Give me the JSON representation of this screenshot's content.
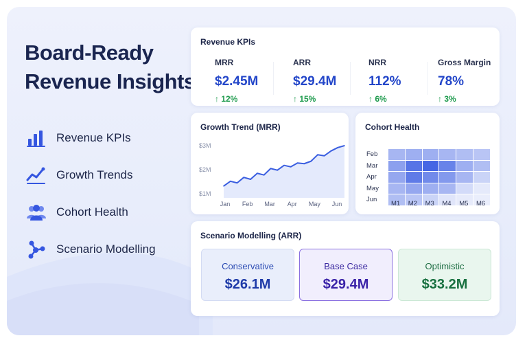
{
  "headline": {
    "line1": "Board-Ready",
    "line2": "Revenue Insights"
  },
  "nav": [
    {
      "label": "Revenue KPIs",
      "icon": "bar-chart-icon"
    },
    {
      "label": "Growth Trends",
      "icon": "line-trend-icon"
    },
    {
      "label": "Cohort Health",
      "icon": "users-icon"
    },
    {
      "label": "Scenario Modelling",
      "icon": "network-icon"
    }
  ],
  "kpi_card": {
    "title": "Revenue KPIs",
    "items": [
      {
        "label": "MRR",
        "value": "$2.45M",
        "change": "↑ 12%"
      },
      {
        "label": "ARR",
        "value": "$29.4M",
        "change": "↑ 15%"
      },
      {
        "label": "NRR",
        "value": "112%",
        "change": "↑ 6%"
      },
      {
        "label": "Gross Margin",
        "value": "78%",
        "change": "↑ 3%"
      }
    ]
  },
  "growth_card": {
    "title": "Growth Trend (MRR)"
  },
  "cohort_card": {
    "title": "Cohort Health",
    "rows": [
      "Feb",
      "Mar",
      "Apr",
      "May",
      "Jun"
    ],
    "cols": [
      "M1",
      "M2",
      "M3",
      "M4",
      "M5",
      "M6"
    ],
    "intensity": [
      [
        0.4,
        0.45,
        0.45,
        0.4,
        0.35,
        0.3
      ],
      [
        0.55,
        0.85,
        0.95,
        0.75,
        0.45,
        0.35
      ],
      [
        0.5,
        0.8,
        0.7,
        0.6,
        0.4,
        0.2
      ],
      [
        0.4,
        0.5,
        0.45,
        0.4,
        0.15,
        0.05
      ],
      [
        0.35,
        0.3,
        0.2,
        0.08,
        0.04,
        0.02
      ]
    ]
  },
  "scenario_card": {
    "title": "Scenario Modelling (ARR)",
    "items": [
      {
        "label": "Conservative",
        "value": "$26.1M"
      },
      {
        "label": "Base Case",
        "value": "$29.4M"
      },
      {
        "label": "Optimistic",
        "value": "$33.2M"
      }
    ]
  },
  "colors": {
    "accent": "#2346c9",
    "positive": "#1f9b4e",
    "line": "#3a5ee0",
    "cohort_base": "#2d52e0"
  },
  "chart_data": {
    "type": "line",
    "title": "Growth Trend (MRR)",
    "categories": [
      "Jan",
      "Feb",
      "Mar",
      "Apr",
      "May",
      "Jun"
    ],
    "y_tick_labels": [
      "$3M",
      "$2M",
      "$1M"
    ],
    "ylim": [
      1,
      3
    ],
    "x": [
      0,
      0.3,
      0.6,
      0.9,
      1.2,
      1.5,
      1.8,
      2.1,
      2.4,
      2.7,
      3.0,
      3.3,
      3.6,
      3.9,
      4.2,
      4.5,
      4.8,
      5.1,
      5.4
    ],
    "values": [
      1.32,
      1.52,
      1.45,
      1.68,
      1.6,
      1.85,
      1.78,
      2.05,
      1.98,
      2.18,
      2.12,
      2.28,
      2.25,
      2.35,
      2.62,
      2.58,
      2.78,
      2.92,
      3.0
    ],
    "grid": false,
    "legend": "none"
  }
}
